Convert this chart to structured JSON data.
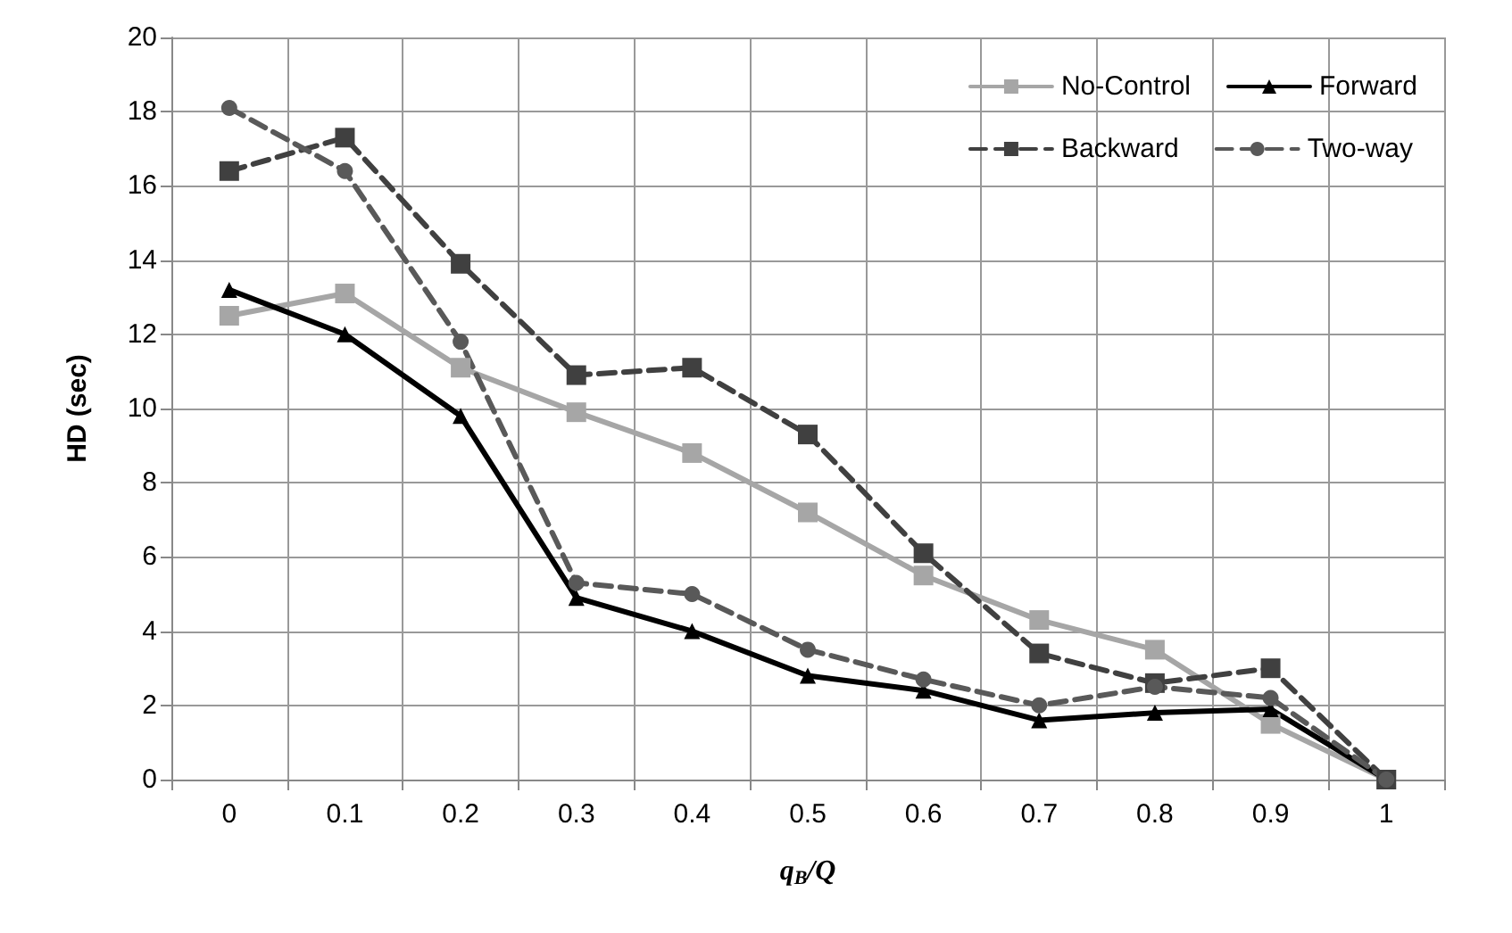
{
  "chart_data": {
    "type": "line",
    "xlabel": "q$_{B}$/Q",
    "ylabel": "HD (sec)",
    "categories": [
      "0",
      "0.1",
      "0.2",
      "0.3",
      "0.4",
      "0.5",
      "0.6",
      "0.7",
      "0.8",
      "0.9",
      "1"
    ],
    "series": [
      {
        "name": "No-Control",
        "color": "#a6a6a6",
        "marker": "square",
        "line_style": "solid",
        "values": [
          12.5,
          13.1,
          11.1,
          9.9,
          8.8,
          7.2,
          5.5,
          4.3,
          3.5,
          1.5,
          0
        ]
      },
      {
        "name": "Forward",
        "color": "#000000",
        "marker": "triangle",
        "line_style": "solid",
        "values": [
          13.2,
          12.0,
          9.8,
          4.9,
          4.0,
          2.8,
          2.4,
          1.6,
          1.8,
          1.9,
          0
        ]
      },
      {
        "name": "Backward",
        "color": "#404040",
        "marker": "square",
        "line_style": "dashed",
        "values": [
          16.4,
          17.3,
          13.9,
          10.9,
          11.1,
          9.3,
          6.1,
          3.4,
          2.6,
          3.0,
          0
        ]
      },
      {
        "name": "Two-way",
        "color": "#595959",
        "marker": "circle",
        "line_style": "dashed",
        "values": [
          18.1,
          16.4,
          11.8,
          5.3,
          5.0,
          3.5,
          2.7,
          2.0,
          2.5,
          2.2,
          0
        ]
      }
    ],
    "ylim": [
      0,
      20
    ],
    "yticks": [
      0,
      2,
      4,
      6,
      8,
      10,
      12,
      14,
      16,
      18,
      20
    ],
    "grid": true,
    "legend": "top right"
  }
}
